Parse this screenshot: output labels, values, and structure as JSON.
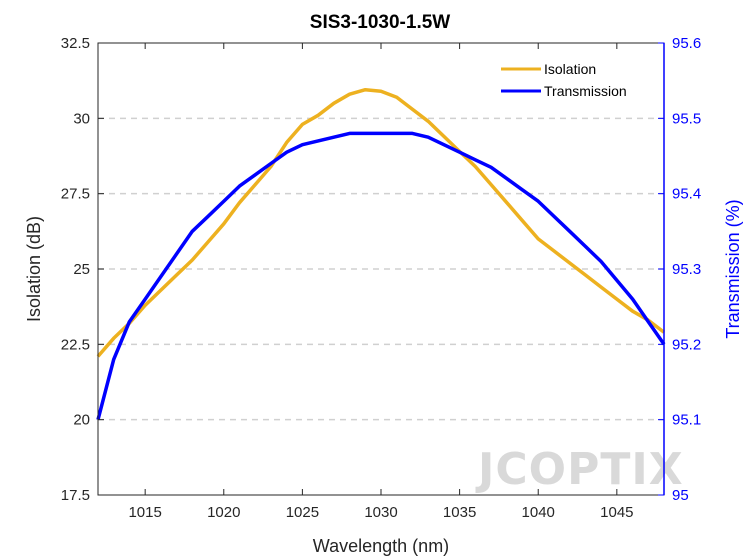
{
  "chart_data": {
    "type": "line",
    "title": "SIS3-1030-1.5W",
    "xlabel": "Wavelength (nm)",
    "ylabel_left": "Isolation (dB)",
    "ylabel_right": "Transmission (%)",
    "xlim": [
      1012,
      1048
    ],
    "ylim_left": [
      17.5,
      32.5
    ],
    "ylim_right": [
      95,
      95.6
    ],
    "xticks": [
      "1015",
      "1020",
      "1025",
      "1030",
      "1035",
      "1040",
      "1045"
    ],
    "yticks_left": [
      "17.5",
      "20",
      "22.5",
      "25",
      "27.5",
      "30",
      "32.5"
    ],
    "yticks_right": [
      "95",
      "95.1",
      "95.2",
      "95.3",
      "95.4",
      "95.5",
      "95.6"
    ],
    "grid": "horizontal dashed",
    "legend_placement": "top-right",
    "series": [
      {
        "name": "Isolation",
        "axis": "left",
        "color": "#EDB120",
        "x": [
          1012,
          1013,
          1014,
          1015,
          1016,
          1017,
          1018,
          1019,
          1020,
          1021,
          1022,
          1023,
          1024,
          1025,
          1026,
          1027,
          1028,
          1029,
          1030,
          1031,
          1032,
          1033,
          1034,
          1035,
          1036,
          1037,
          1038,
          1039,
          1040,
          1041,
          1042,
          1043,
          1044,
          1045,
          1046,
          1047,
          1048
        ],
        "values": [
          22.1,
          22.7,
          23.2,
          23.8,
          24.3,
          24.8,
          25.3,
          25.9,
          26.5,
          27.2,
          27.8,
          28.4,
          29.2,
          29.8,
          30.1,
          30.5,
          30.8,
          30.95,
          30.9,
          30.7,
          30.3,
          29.9,
          29.4,
          28.9,
          28.4,
          27.8,
          27.2,
          26.6,
          26.0,
          25.6,
          25.2,
          24.8,
          24.4,
          24.0,
          23.6,
          23.3,
          22.9
        ]
      },
      {
        "name": "Transmission",
        "axis": "right",
        "color": "#0000FF",
        "x": [
          1012,
          1013,
          1014,
          1015,
          1016,
          1017,
          1018,
          1019,
          1020,
          1021,
          1022,
          1023,
          1024,
          1025,
          1026,
          1027,
          1028,
          1029,
          1030,
          1031,
          1032,
          1033,
          1034,
          1035,
          1036,
          1037,
          1038,
          1039,
          1040,
          1041,
          1042,
          1043,
          1044,
          1045,
          1046,
          1047,
          1048
        ],
        "values": [
          95.1,
          95.18,
          95.23,
          95.26,
          95.29,
          95.32,
          95.35,
          95.37,
          95.39,
          95.41,
          95.425,
          95.44,
          95.455,
          95.465,
          95.47,
          95.475,
          95.48,
          95.48,
          95.48,
          95.48,
          95.48,
          95.475,
          95.465,
          95.455,
          95.445,
          95.435,
          95.42,
          95.405,
          95.39,
          95.37,
          95.35,
          95.33,
          95.31,
          95.285,
          95.26,
          95.23,
          95.2
        ]
      }
    ]
  },
  "watermark": "JCOPTIX",
  "colors": {
    "isolation": "#EDB120",
    "transmission": "#0000FF",
    "grid": "#D0D0D0",
    "watermark": "#D9D9D9"
  }
}
